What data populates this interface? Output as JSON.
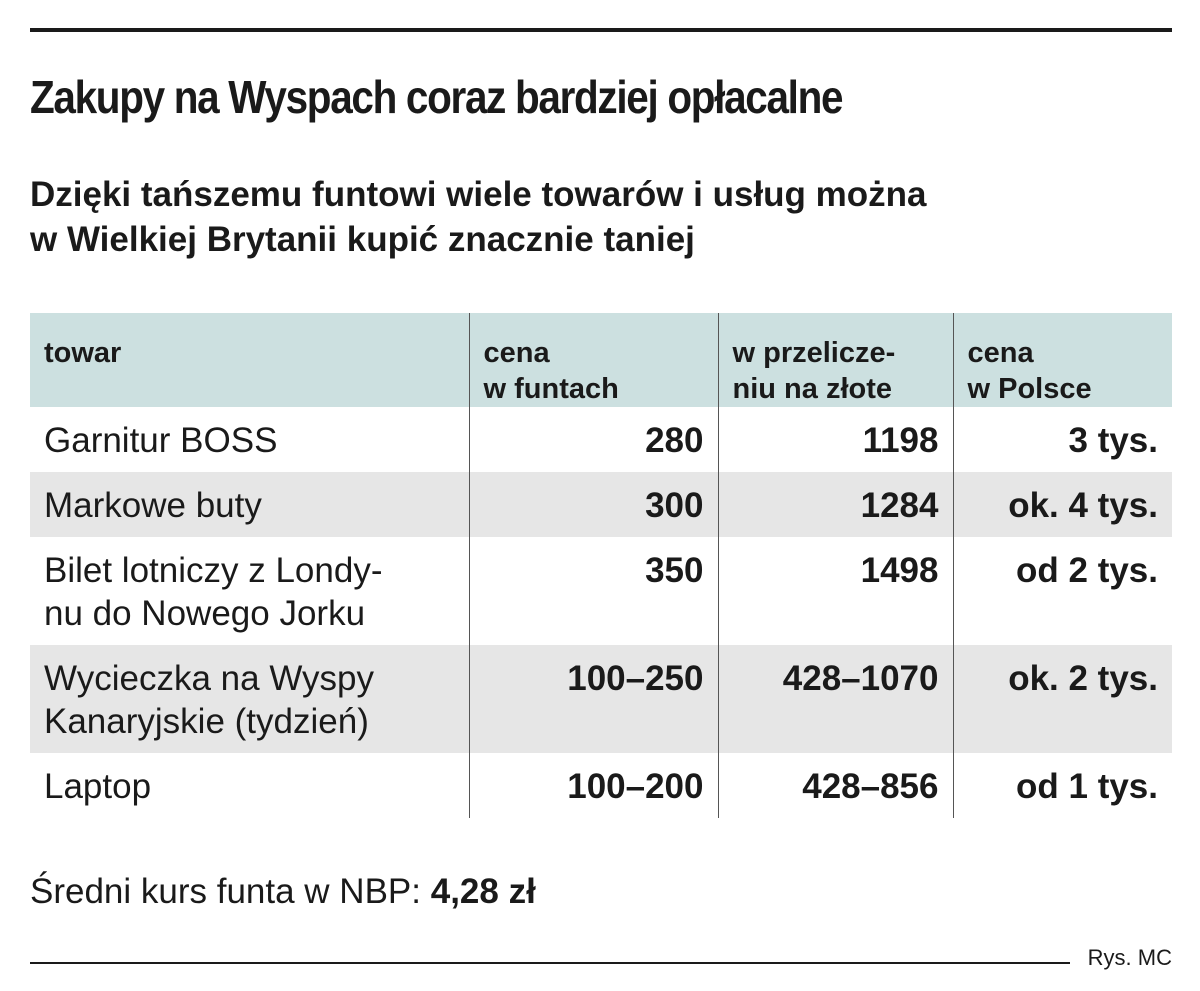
{
  "title": "Zakupy na Wyspach coraz bardziej opłacalne",
  "subtitle": "Dzięki tańszemu funtowi wiele towarów i usług można\nw Wielkiej Brytanii kupić znacznie taniej",
  "chart_data": {
    "type": "table",
    "columns": [
      "towar",
      "cena\nw funtach",
      "w przelicze-\nniu na złote",
      "cena\nw Polsce"
    ],
    "rows": [
      [
        "Garnitur BOSS",
        "280",
        "1198",
        "3 tys."
      ],
      [
        "Markowe buty",
        "300",
        "1284",
        "ok. 4 tys."
      ],
      [
        "Bilet lotniczy z Londy-\nnu do Nowego Jorku",
        "350",
        "1498",
        "od 2 tys."
      ],
      [
        "Wycieczka na Wyspy\nKanaryjskie (tydzień)",
        "100–250",
        "428–1070",
        "ok. 2 tys."
      ],
      [
        "Laptop",
        "100–200",
        "428–856",
        "od 1 tys."
      ]
    ],
    "header_color": "#cce0e0",
    "stripe_color": "#e6e6e6"
  },
  "note": {
    "label": "Średni kurs funta w NBP: ",
    "value": "4,28 zł"
  },
  "credit": "Rys. MC"
}
